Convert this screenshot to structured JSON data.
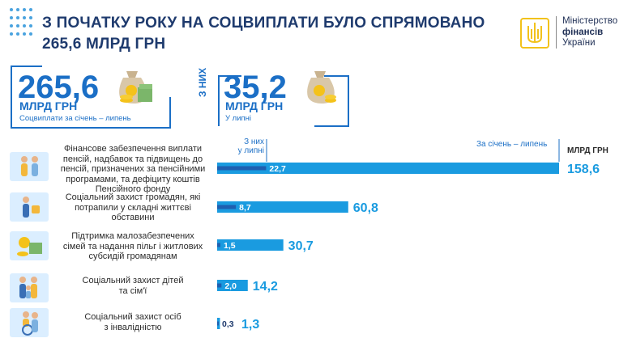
{
  "header": {
    "title_line1": "З ПОЧАТКУ РОКУ НА СОЦВИПЛАТИ БУЛО СПРЯМОВАНО",
    "title_line2": "265,6 МЛРД ГРН"
  },
  "logo": {
    "line1": "Міністерство",
    "line2": "фінансів",
    "line3": "України"
  },
  "summary": {
    "total": {
      "value": "265,6",
      "unit": "МЛРД ГРН",
      "caption": "Соцвиплати за січень – липень"
    },
    "between": "З НИХ",
    "july": {
      "value": "35,2",
      "unit": "МЛРД ГРН",
      "caption": "У липні"
    }
  },
  "colors": {
    "primary": "#1b6fc6",
    "bar_total": "#1a9be0",
    "bar_july": "#1f5fb0",
    "dark": "#1f3b6e",
    "icon_bg": "#dbeeff"
  },
  "chart_data": {
    "type": "bar",
    "orientation": "horizontal",
    "units_label": "МЛРД ГРН",
    "july_header": [
      "З них",
      "у липні"
    ],
    "total_header": "За січень – липень",
    "categories": [
      [
        "Фінансове забезпечення виплати",
        "пенсій, надбавок та підвищень до",
        "пенсій, призначених за пенсійними",
        "програмами, та дефіциту коштів",
        "Пенсійного фонду"
      ],
      [
        "Соціальний захист громадян, які",
        "потрапили у складні життєві",
        "обставини"
      ],
      [
        "Підтримка малозабезпечених",
        "сімей та надання пільг і житлових",
        "субсидій громадянам"
      ],
      [
        "Соціальний захист дітей",
        "та сім'ї"
      ],
      [
        "Соціальний захист осіб",
        "з інвалідністю"
      ]
    ],
    "icons": [
      "pensioners-icon",
      "person-help-icon",
      "money-subsidy-icon",
      "family-icon",
      "disability-icon"
    ],
    "series": [
      {
        "name": "За січень – липень",
        "values": [
          158.6,
          60.8,
          30.7,
          14.2,
          1.3
        ],
        "labels": [
          "158,6",
          "60,8",
          "30,7",
          "14,2",
          "1,3"
        ]
      },
      {
        "name": "З них у липні",
        "values": [
          22.7,
          8.7,
          1.5,
          2.0,
          0.3
        ],
        "labels": [
          "22,7",
          "8,7",
          "1,5",
          "2,0",
          "0,3"
        ]
      }
    ],
    "xlim": [
      0,
      158.6
    ]
  }
}
